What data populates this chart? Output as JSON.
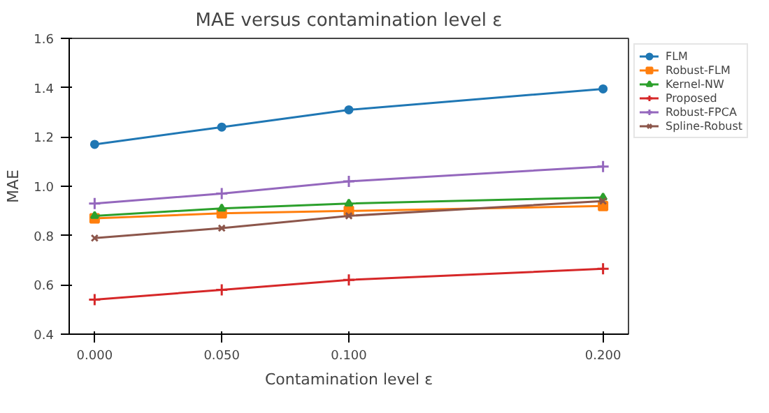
{
  "chart_data": {
    "type": "line",
    "title": "MAE versus contamination level ε",
    "xlabel": "Contamination level ε",
    "ylabel": "MAE",
    "x": [
      0.0,
      0.05,
      0.1,
      0.2
    ],
    "xlim": [
      -0.01,
      0.21
    ],
    "xticks": [
      {
        "value": 0,
        "label": "0.000"
      },
      {
        "value": 0.05,
        "label": "0.050"
      },
      {
        "value": 0.1,
        "label": "0.100"
      },
      {
        "value": 0.2,
        "label": "0.200"
      }
    ],
    "ylim": [
      0.4,
      1.6
    ],
    "yticks": [
      {
        "value": 0.4,
        "label": "0.4"
      },
      {
        "value": 0.6,
        "label": "0.6"
      },
      {
        "value": 0.8,
        "label": "0.8"
      },
      {
        "value": 1.0,
        "label": "1.0"
      },
      {
        "value": 1.2,
        "label": "1.2"
      },
      {
        "value": 1.4,
        "label": "1.4"
      },
      {
        "value": 1.6,
        "label": "1.6"
      }
    ],
    "grid": false,
    "legend": "top right",
    "line_style": "solid",
    "series": [
      {
        "name": "FLM",
        "color": "#1f77b4",
        "marker": "circle",
        "values": [
          1.17,
          1.24,
          1.31,
          1.395
        ]
      },
      {
        "name": "Robust-FLM",
        "color": "#ff7f0e",
        "marker": "square",
        "values": [
          0.87,
          0.89,
          0.9,
          0.92
        ]
      },
      {
        "name": "Kernel-NW",
        "color": "#2ca02c",
        "marker": "triangle",
        "values": [
          0.88,
          0.91,
          0.93,
          0.955
        ]
      },
      {
        "name": "Proposed",
        "color": "#d62728",
        "marker": "cross",
        "values": [
          0.54,
          0.58,
          0.62,
          0.665
        ]
      },
      {
        "name": "Robust-FPCA",
        "color": "#9467bd",
        "marker": "cross",
        "values": [
          0.93,
          0.97,
          1.02,
          1.08
        ]
      },
      {
        "name": "Spline-Robust",
        "color": "#8c564b",
        "marker": "x",
        "values": [
          0.79,
          0.83,
          0.88,
          0.94
        ]
      }
    ]
  }
}
